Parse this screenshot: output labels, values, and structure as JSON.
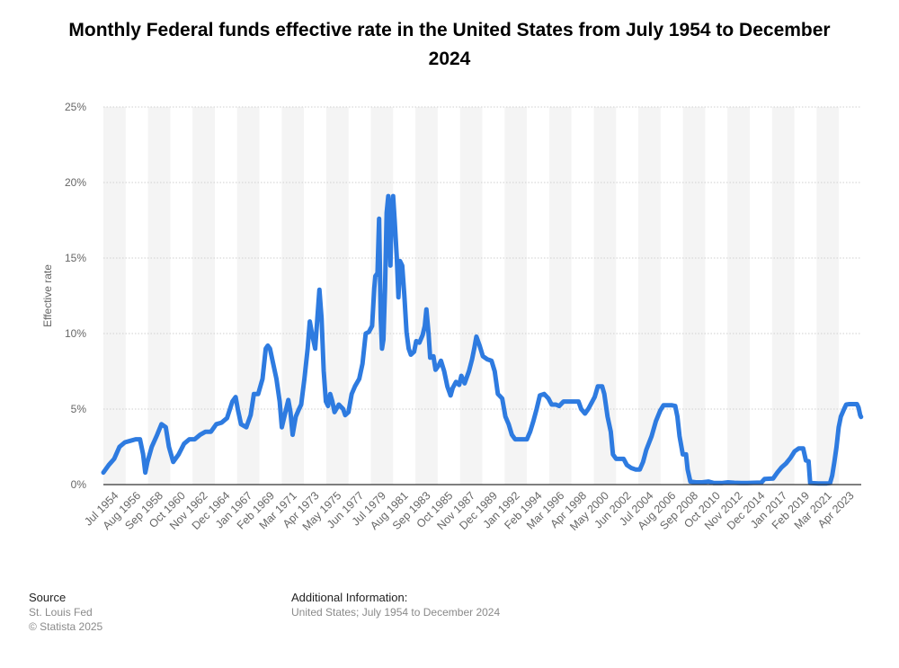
{
  "title": "Monthly Federal funds effective rate in the United States from July 1954 to December 2024",
  "footer": {
    "source_heading": "Source",
    "source_lines": [
      "St. Louis Fed",
      "© Statista 2025"
    ],
    "info_heading": "Additional Information:",
    "info_text": "United States; July 1954 to December 2024"
  },
  "colors": {
    "line": "#2e7be0",
    "band": "#f4f4f4",
    "axis": "#333333",
    "grid": "#cfcfcf",
    "tick_text": "#666666"
  },
  "chart_data": {
    "type": "line",
    "title": "Monthly Federal funds effective rate in the United States from July 1954 to December 2024",
    "xlabel": "",
    "ylabel": "Effective rate",
    "ylim": [
      0,
      25
    ],
    "yticks": [
      "0%",
      "5%",
      "10%",
      "15%",
      "20%",
      "25%"
    ],
    "xticks": [
      "Jul 1954",
      "Aug 1956",
      "Sep 1958",
      "Oct 1960",
      "Nov 1962",
      "Dec 1964",
      "Jan 1967",
      "Feb 1969",
      "Mar 1971",
      "Apr 1973",
      "May 1975",
      "Jun 1977",
      "Jul 1979",
      "Aug 1981",
      "Sep 1983",
      "Oct 1985",
      "Nov 1987",
      "Dec 1989",
      "Jan 1992",
      "Feb 1994",
      "Mar 1996",
      "Apr 1998",
      "May 2000",
      "Jun 2002",
      "Jul 2004",
      "Aug 2006",
      "Sep 2008",
      "Oct 2010",
      "Nov 2012",
      "Dec 2014",
      "Jan 2017",
      "Feb 2019",
      "Mar 2021",
      "Apr 2023"
    ],
    "grid": true,
    "series": [
      {
        "points": [
          [
            1954.5,
            0.8
          ],
          [
            1955.0,
            1.3
          ],
          [
            1955.5,
            1.7
          ],
          [
            1956.0,
            2.5
          ],
          [
            1956.5,
            2.8
          ],
          [
            1957.0,
            2.9
          ],
          [
            1957.5,
            3.0
          ],
          [
            1957.9,
            3.0
          ],
          [
            1958.2,
            2.0
          ],
          [
            1958.4,
            0.8
          ],
          [
            1958.6,
            1.5
          ],
          [
            1959.0,
            2.5
          ],
          [
            1959.5,
            3.3
          ],
          [
            1959.9,
            4.0
          ],
          [
            1960.3,
            3.8
          ],
          [
            1960.6,
            2.5
          ],
          [
            1960.8,
            2.0
          ],
          [
            1961.0,
            1.5
          ],
          [
            1961.5,
            2.0
          ],
          [
            1962.0,
            2.7
          ],
          [
            1962.5,
            3.0
          ],
          [
            1963.0,
            3.0
          ],
          [
            1963.5,
            3.3
          ],
          [
            1964.0,
            3.5
          ],
          [
            1964.5,
            3.5
          ],
          [
            1965.0,
            4.0
          ],
          [
            1965.5,
            4.1
          ],
          [
            1966.0,
            4.4
          ],
          [
            1966.5,
            5.5
          ],
          [
            1966.8,
            5.8
          ],
          [
            1967.0,
            5.0
          ],
          [
            1967.3,
            4.0
          ],
          [
            1967.8,
            3.8
          ],
          [
            1968.2,
            4.6
          ],
          [
            1968.5,
            6.0
          ],
          [
            1968.9,
            6.0
          ],
          [
            1969.3,
            7.0
          ],
          [
            1969.6,
            9.0
          ],
          [
            1969.8,
            9.2
          ],
          [
            1970.0,
            9.0
          ],
          [
            1970.3,
            8.0
          ],
          [
            1970.6,
            7.0
          ],
          [
            1970.9,
            5.5
          ],
          [
            1971.1,
            3.8
          ],
          [
            1971.5,
            5.0
          ],
          [
            1971.7,
            5.6
          ],
          [
            1971.9,
            4.8
          ],
          [
            1972.1,
            3.3
          ],
          [
            1972.4,
            4.5
          ],
          [
            1972.7,
            5.0
          ],
          [
            1972.9,
            5.3
          ],
          [
            1973.2,
            7.0
          ],
          [
            1973.5,
            9.0
          ],
          [
            1973.7,
            10.8
          ],
          [
            1973.9,
            10.0
          ],
          [
            1974.2,
            9.0
          ],
          [
            1974.4,
            11.0
          ],
          [
            1974.6,
            12.9
          ],
          [
            1974.8,
            11.0
          ],
          [
            1975.0,
            7.5
          ],
          [
            1975.2,
            5.5
          ],
          [
            1975.4,
            5.2
          ],
          [
            1975.6,
            6.0
          ],
          [
            1975.8,
            5.5
          ],
          [
            1976.0,
            4.8
          ],
          [
            1976.4,
            5.3
          ],
          [
            1976.8,
            5.0
          ],
          [
            1977.0,
            4.6
          ],
          [
            1977.3,
            4.8
          ],
          [
            1977.6,
            6.0
          ],
          [
            1977.9,
            6.5
          ],
          [
            1978.3,
            7.0
          ],
          [
            1978.6,
            8.0
          ],
          [
            1978.9,
            10.0
          ],
          [
            1979.2,
            10.1
          ],
          [
            1979.5,
            10.5
          ],
          [
            1979.7,
            13.0
          ],
          [
            1979.8,
            13.8
          ],
          [
            1980.0,
            14.0
          ],
          [
            1980.15,
            17.6
          ],
          [
            1980.3,
            11.0
          ],
          [
            1980.42,
            9.0
          ],
          [
            1980.55,
            9.6
          ],
          [
            1980.7,
            13.0
          ],
          [
            1980.85,
            18.0
          ],
          [
            1981.0,
            19.1
          ],
          [
            1981.2,
            14.5
          ],
          [
            1981.3,
            18.0
          ],
          [
            1981.45,
            19.1
          ],
          [
            1981.6,
            17.5
          ],
          [
            1981.8,
            15.0
          ],
          [
            1981.95,
            12.4
          ],
          [
            1982.1,
            14.8
          ],
          [
            1982.3,
            14.5
          ],
          [
            1982.5,
            12.5
          ],
          [
            1982.7,
            10.1
          ],
          [
            1982.9,
            9.0
          ],
          [
            1983.1,
            8.6
          ],
          [
            1983.4,
            8.8
          ],
          [
            1983.6,
            9.5
          ],
          [
            1983.9,
            9.4
          ],
          [
            1984.2,
            9.9
          ],
          [
            1984.4,
            10.5
          ],
          [
            1984.55,
            11.6
          ],
          [
            1984.75,
            10.0
          ],
          [
            1984.9,
            8.4
          ],
          [
            1985.2,
            8.5
          ],
          [
            1985.4,
            7.6
          ],
          [
            1985.7,
            7.9
          ],
          [
            1985.9,
            8.2
          ],
          [
            1986.2,
            7.5
          ],
          [
            1986.5,
            6.5
          ],
          [
            1986.8,
            5.9
          ],
          [
            1987.0,
            6.4
          ],
          [
            1987.3,
            6.8
          ],
          [
            1987.6,
            6.6
          ],
          [
            1987.8,
            7.2
          ],
          [
            1988.1,
            6.7
          ],
          [
            1988.5,
            7.5
          ],
          [
            1988.8,
            8.3
          ],
          [
            1989.0,
            9.0
          ],
          [
            1989.2,
            9.8
          ],
          [
            1989.5,
            9.2
          ],
          [
            1989.8,
            8.5
          ],
          [
            1990.2,
            8.3
          ],
          [
            1990.6,
            8.2
          ],
          [
            1990.9,
            7.5
          ],
          [
            1991.2,
            6.0
          ],
          [
            1991.6,
            5.7
          ],
          [
            1991.9,
            4.5
          ],
          [
            1992.2,
            4.0
          ],
          [
            1992.5,
            3.3
          ],
          [
            1992.8,
            3.0
          ],
          [
            1993.2,
            3.0
          ],
          [
            1993.6,
            3.0
          ],
          [
            1993.9,
            3.0
          ],
          [
            1994.2,
            3.5
          ],
          [
            1994.5,
            4.2
          ],
          [
            1994.8,
            5.0
          ],
          [
            1995.1,
            5.9
          ],
          [
            1995.5,
            6.0
          ],
          [
            1995.9,
            5.7
          ],
          [
            1996.2,
            5.3
          ],
          [
            1996.6,
            5.3
          ],
          [
            1996.9,
            5.2
          ],
          [
            1997.3,
            5.5
          ],
          [
            1997.7,
            5.5
          ],
          [
            1998.0,
            5.5
          ],
          [
            1998.4,
            5.5
          ],
          [
            1998.7,
            5.5
          ],
          [
            1998.95,
            5.0
          ],
          [
            1999.3,
            4.7
          ],
          [
            1999.6,
            5.0
          ],
          [
            1999.9,
            5.4
          ],
          [
            2000.2,
            5.8
          ],
          [
            2000.5,
            6.5
          ],
          [
            2000.9,
            6.5
          ],
          [
            2001.1,
            6.0
          ],
          [
            2001.4,
            4.5
          ],
          [
            2001.7,
            3.5
          ],
          [
            2001.9,
            2.0
          ],
          [
            2002.2,
            1.7
          ],
          [
            2002.6,
            1.7
          ],
          [
            2002.9,
            1.7
          ],
          [
            2003.2,
            1.3
          ],
          [
            2003.6,
            1.1
          ],
          [
            2004.0,
            1.0
          ],
          [
            2004.4,
            1.0
          ],
          [
            2004.7,
            1.5
          ],
          [
            2005.0,
            2.3
          ],
          [
            2005.5,
            3.2
          ],
          [
            2005.9,
            4.2
          ],
          [
            2006.3,
            4.9
          ],
          [
            2006.6,
            5.25
          ],
          [
            2007.0,
            5.25
          ],
          [
            2007.4,
            5.25
          ],
          [
            2007.7,
            5.2
          ],
          [
            2007.9,
            4.5
          ],
          [
            2008.1,
            3.2
          ],
          [
            2008.4,
            2.0
          ],
          [
            2008.7,
            2.0
          ],
          [
            2008.85,
            1.0
          ],
          [
            2009.1,
            0.2
          ],
          [
            2009.6,
            0.15
          ],
          [
            2010.2,
            0.15
          ],
          [
            2010.8,
            0.2
          ],
          [
            2011.3,
            0.1
          ],
          [
            2012.0,
            0.1
          ],
          [
            2012.6,
            0.15
          ],
          [
            2013.2,
            0.12
          ],
          [
            2013.8,
            0.1
          ],
          [
            2014.4,
            0.1
          ],
          [
            2015.0,
            0.12
          ],
          [
            2015.7,
            0.13
          ],
          [
            2016.0,
            0.37
          ],
          [
            2016.8,
            0.4
          ],
          [
            2017.2,
            0.8
          ],
          [
            2017.6,
            1.15
          ],
          [
            2018.0,
            1.4
          ],
          [
            2018.4,
            1.75
          ],
          [
            2018.8,
            2.2
          ],
          [
            2019.2,
            2.4
          ],
          [
            2019.6,
            2.4
          ],
          [
            2019.85,
            1.6
          ],
          [
            2020.1,
            1.55
          ],
          [
            2020.25,
            0.1
          ],
          [
            2021.0,
            0.08
          ],
          [
            2021.8,
            0.08
          ],
          [
            2022.1,
            0.1
          ],
          [
            2022.3,
            0.6
          ],
          [
            2022.5,
            1.5
          ],
          [
            2022.7,
            2.5
          ],
          [
            2022.9,
            3.8
          ],
          [
            2023.1,
            4.5
          ],
          [
            2023.4,
            5.0
          ],
          [
            2023.6,
            5.3
          ],
          [
            2023.9,
            5.33
          ],
          [
            2024.3,
            5.33
          ],
          [
            2024.6,
            5.33
          ],
          [
            2024.75,
            5.1
          ],
          [
            2024.9,
            4.6
          ],
          [
            2024.98,
            4.48
          ]
        ]
      }
    ]
  }
}
